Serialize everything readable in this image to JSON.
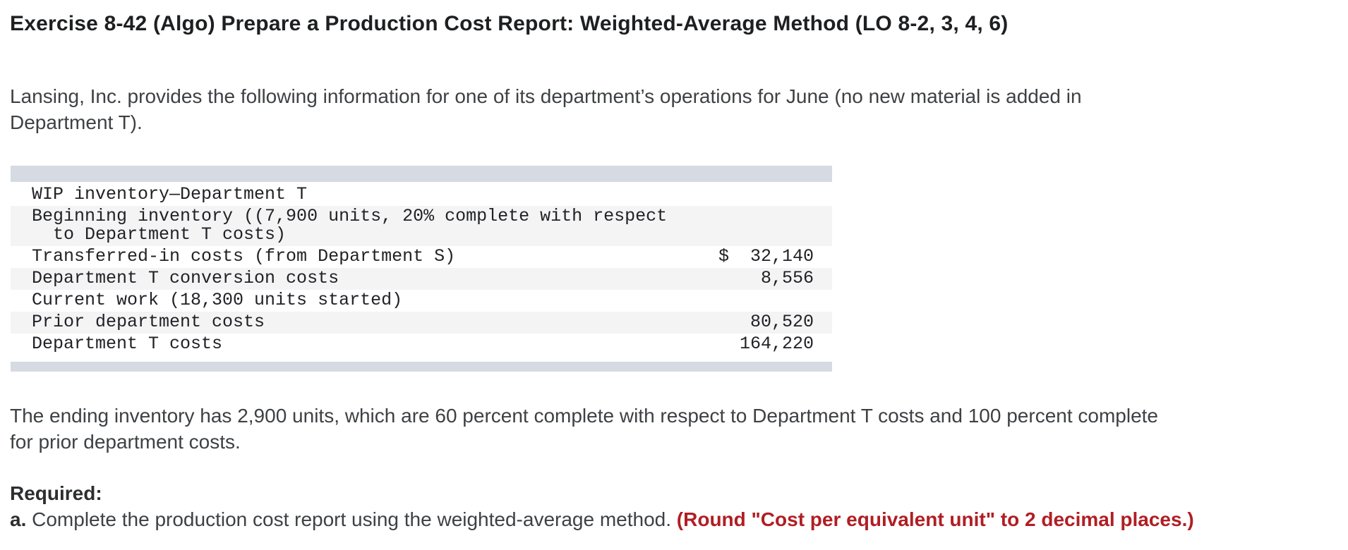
{
  "page": {
    "title": "Exercise 8-42 (Algo) Prepare a Production Cost Report: Weighted-Average Method (LO 8-2, 3, 4, 6)"
  },
  "intro": {
    "lines": [
      "Lansing, Inc. provides the following information for one of its department’s operations for June (no new material is added in",
      "Department T)."
    ]
  },
  "table": {
    "title_row": "WIP inventory—Department T",
    "currency_symbol": "$",
    "rows": [
      {
        "label": "WIP inventory—Department T",
        "amount": ""
      },
      {
        "label": "Beginning inventory ((7,900 units, 20% complete with respect\n  to Department T costs)",
        "amount": ""
      },
      {
        "label": "Transferred-in costs (from Department S)",
        "amount": "$  32,140"
      },
      {
        "label": "Department T conversion costs",
        "amount": "8,556"
      },
      {
        "label": "Current work (18,300 units started)",
        "amount": ""
      },
      {
        "label": "Prior department costs",
        "amount": "80,520"
      },
      {
        "label": "Department T costs",
        "amount": "164,220"
      }
    ]
  },
  "ending": {
    "lines": [
      "The ending inventory has 2,900 units, which are 60 percent complete with respect to Department T costs and 100 percent complete",
      "for prior department costs."
    ]
  },
  "required": {
    "heading": "Required:",
    "item_prefix": "a.",
    "item_text": " Complete the production cost report using the weighted-average method. ",
    "item_note": "(Round \"Cost per equivalent unit\" to 2 decimal places.)"
  },
  "colors": {
    "table_bar": "#d6dae3",
    "row_stripe": "#f4f4f5",
    "note_red": "#b01e24",
    "body_text": "#3e4144",
    "title_text": "#1e1f21"
  }
}
